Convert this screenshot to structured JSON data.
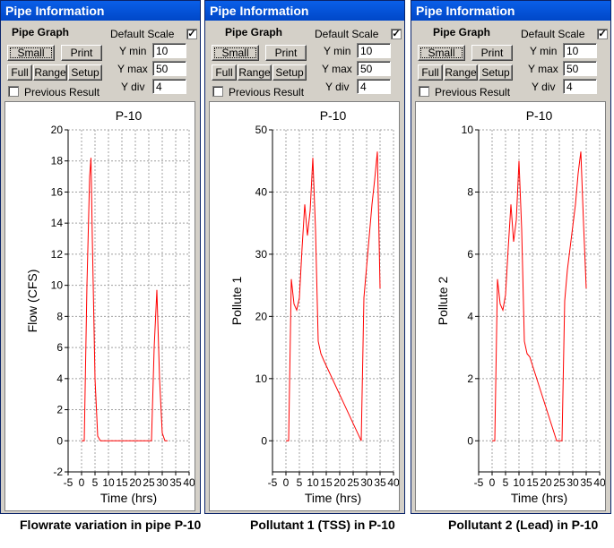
{
  "panels": [
    {
      "title": "Pipe Information",
      "pipe_graph_label": "Pipe Graph",
      "small_label": "Small",
      "print_label": "Print",
      "full_label": "Full",
      "range_label": "Range",
      "setup_label": "Setup",
      "default_scale_label": "Default Scale",
      "default_scale_checked": "✓",
      "ymin_label": "Y min",
      "ymin_value": "10",
      "ymax_label": "Y max",
      "ymax_value": "50",
      "ydiv_label": "Y div",
      "ydiv_value": "4",
      "previous_result_label": "Previous Result",
      "caption": "Flowrate variation in pipe P-10"
    },
    {
      "title": "Pipe Information",
      "pipe_graph_label": "Pipe Graph",
      "small_label": "Small",
      "print_label": "Print",
      "full_label": "Full",
      "range_label": "Range",
      "setup_label": "Setup",
      "default_scale_label": "Default Scale",
      "default_scale_checked": "✓",
      "ymin_label": "Y min",
      "ymin_value": "10",
      "ymax_label": "Y max",
      "ymax_value": "50",
      "ydiv_label": "Y div",
      "ydiv_value": "4",
      "previous_result_label": "Previous Result",
      "caption": "Pollutant 1 (TSS) in P-10"
    },
    {
      "title": "Pipe Information",
      "pipe_graph_label": "Pipe Graph",
      "small_label": "Small",
      "print_label": "Print",
      "full_label": "Full",
      "range_label": "Range",
      "setup_label": "Setup",
      "default_scale_label": "Default Scale",
      "default_scale_checked": "✓",
      "ymin_label": "Y min",
      "ymin_value": "10",
      "ymax_label": "Y max",
      "ymax_value": "50",
      "ydiv_label": "Y div",
      "ydiv_value": "4",
      "previous_result_label": "Previous Result",
      "caption": "Pollutant 2 (Lead) in P-10"
    }
  ],
  "colors": {
    "line": "#ff0000",
    "grid": "#a0a0a0",
    "titlebar": "#0054e3"
  },
  "chart_data": [
    {
      "type": "line",
      "title": "P-10",
      "xlabel": "Time (hrs)",
      "ylabel": "Flow (CFS)",
      "xlim": [
        -5,
        40
      ],
      "ylim": [
        -2,
        20
      ],
      "xticks": [
        -5,
        0,
        5,
        10,
        15,
        20,
        25,
        30,
        35,
        40
      ],
      "xtick_labels": [
        "-5",
        "0",
        "5",
        "10",
        "15",
        "20",
        "25",
        "30",
        "35",
        "40"
      ],
      "yticks": [
        -2,
        0,
        2,
        4,
        6,
        8,
        10,
        12,
        14,
        16,
        18,
        20
      ],
      "grid": true,
      "series": [
        {
          "x": [
            0,
            1,
            2,
            3,
            3.5,
            4,
            5,
            6,
            7,
            8,
            26,
            27,
            28,
            29,
            30,
            31,
            32
          ],
          "y": [
            0,
            0,
            10,
            17,
            18.2,
            13,
            4,
            0.3,
            0,
            0,
            0,
            6,
            9.7,
            4,
            0.5,
            0,
            0
          ]
        }
      ]
    },
    {
      "type": "line",
      "title": "P-10",
      "xlabel": "Time (hrs)",
      "ylabel": "Pollute 1",
      "xlim": [
        -5,
        40
      ],
      "ylim": [
        -5,
        50
      ],
      "xticks": [
        -5,
        0,
        5,
        10,
        15,
        20,
        25,
        30,
        35,
        40
      ],
      "xtick_labels": [
        "-5",
        "0",
        "5",
        "10",
        "15",
        "20",
        "25",
        "30",
        "35",
        "40"
      ],
      "yticks": [
        0,
        10,
        20,
        30,
        40,
        50
      ],
      "grid": true,
      "series": [
        {
          "x": [
            0,
            1,
            2,
            3,
            4,
            5,
            6,
            7,
            8,
            9,
            10,
            11,
            12,
            13,
            14,
            28,
            29,
            30,
            31,
            32,
            33,
            34,
            35
          ],
          "y": [
            0,
            0,
            26,
            22,
            21,
            23,
            31,
            38,
            33,
            37,
            45.5,
            34,
            16,
            14,
            13,
            0,
            23,
            28,
            33,
            38,
            42,
            46.5,
            24.5
          ]
        }
      ]
    },
    {
      "type": "line",
      "title": "P-10",
      "xlabel": "Time (hrs)",
      "ylabel": "Pollute 2",
      "xlim": [
        -5,
        40
      ],
      "ylim": [
        -1,
        10
      ],
      "xticks": [
        -5,
        0,
        5,
        10,
        15,
        20,
        25,
        30,
        35,
        40
      ],
      "xtick_labels": [
        "-5",
        "0",
        "5",
        "10",
        "15",
        "20",
        "25",
        "30",
        "35",
        "40"
      ],
      "yticks": [
        0,
        2,
        4,
        6,
        8,
        10
      ],
      "grid": true,
      "series": [
        {
          "x": [
            0,
            1,
            2,
            3,
            4,
            5,
            6,
            7,
            8,
            9,
            10,
            11,
            12,
            13,
            14,
            24,
            25,
            26,
            27,
            28,
            29,
            30,
            31,
            32,
            33,
            34,
            35
          ],
          "y": [
            0,
            0,
            5.2,
            4.4,
            4.2,
            4.7,
            6.2,
            7.6,
            6.4,
            7.1,
            9.0,
            6.8,
            3.2,
            2.8,
            2.7,
            0,
            0,
            0,
            4.5,
            5.5,
            6.2,
            6.9,
            7.6,
            8.6,
            9.3,
            7.0,
            4.9
          ]
        }
      ]
    }
  ]
}
